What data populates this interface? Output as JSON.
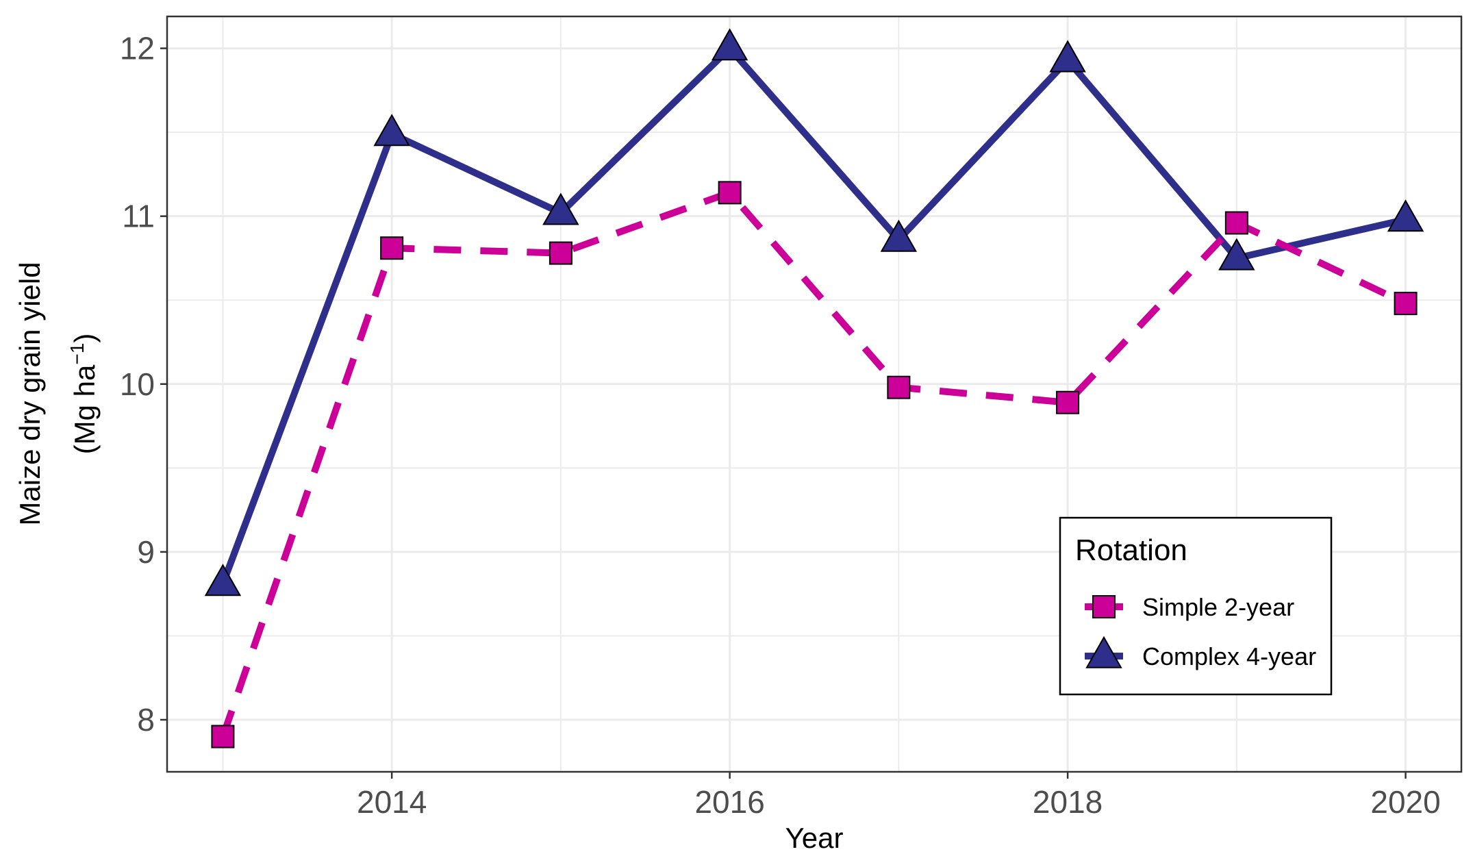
{
  "chart_data": {
    "type": "line",
    "x": [
      2013,
      2014,
      2015,
      2016,
      2017,
      2018,
      2019,
      2020
    ],
    "xlabel": "Year",
    "ylabel_line1": "Maize dry grain yield",
    "ylabel_line2_prefix": "(Mg  ha",
    "ylabel_line2_sup": "−1",
    "ylabel_line2_suffix": ")",
    "xlim": [
      2012.67,
      2020.33
    ],
    "ylim": [
      7.69,
      12.19
    ],
    "x_ticks": [
      2014,
      2016,
      2018,
      2020
    ],
    "x_tick_labels": [
      "2014",
      "2016",
      "2018",
      "2020"
    ],
    "y_ticks": [
      8,
      9,
      10,
      11,
      12
    ],
    "y_tick_labels": [
      "8",
      "9",
      "10",
      "11",
      "12"
    ],
    "grid": true,
    "legend": {
      "title": "Rotation",
      "position": "bottom-right inside"
    },
    "series": [
      {
        "name": "Simple 2-year",
        "values": [
          7.9,
          10.81,
          10.78,
          11.14,
          9.98,
          9.89,
          10.96,
          10.48
        ],
        "color": "#CC0099",
        "line_style": "dashed",
        "marker": "square"
      },
      {
        "name": "Complex 4-year",
        "values": [
          8.81,
          11.49,
          11.02,
          12.0,
          10.86,
          11.93,
          10.75,
          10.98
        ],
        "color": "#2E2E8B",
        "line_style": "solid",
        "marker": "triangle"
      }
    ]
  }
}
